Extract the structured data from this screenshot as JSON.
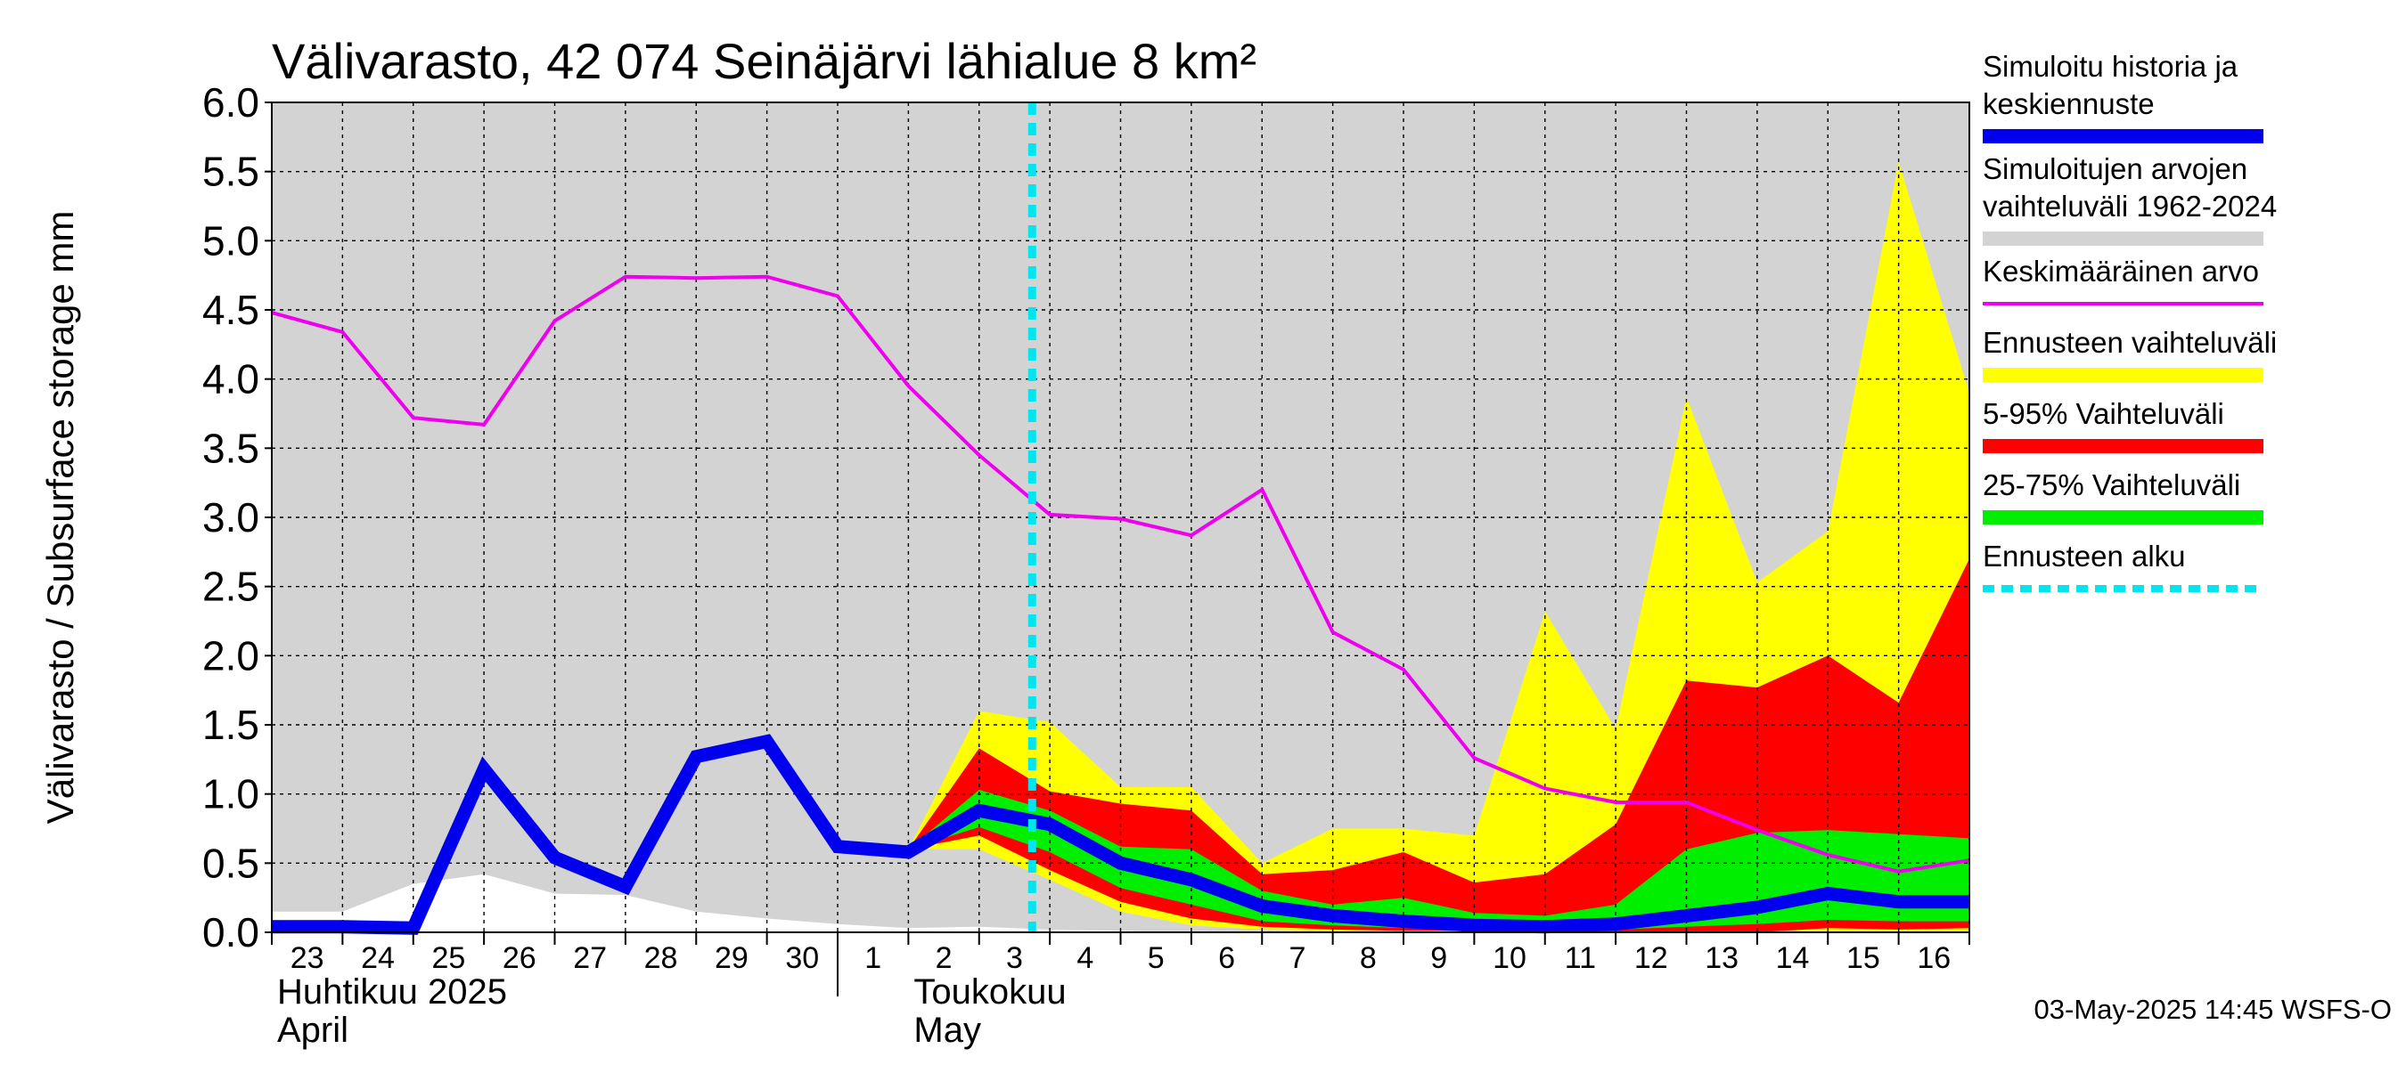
{
  "chart_data": {
    "type": "area",
    "title": "Välivarasto, 42 074 Seinäjärvi lähialue 8 km²",
    "ylabel": "Välivarasto / Subsurface storage  mm",
    "ylim": [
      0,
      6
    ],
    "yticks": [
      "0.0",
      "0.5",
      "1.0",
      "1.5",
      "2.0",
      "2.5",
      "3.0",
      "3.5",
      "4.0",
      "4.5",
      "5.0",
      "5.5",
      "6.0"
    ],
    "grid": true,
    "x_start_day": 23,
    "x_end_day": 47,
    "day_labels": [
      {
        "day": 23,
        "label": "23"
      },
      {
        "day": 24,
        "label": "24"
      },
      {
        "day": 25,
        "label": "25"
      },
      {
        "day": 26,
        "label": "26"
      },
      {
        "day": 27,
        "label": "27"
      },
      {
        "day": 28,
        "label": "28"
      },
      {
        "day": 29,
        "label": "29"
      },
      {
        "day": 30,
        "label": "30"
      },
      {
        "day": 31,
        "label": "1"
      },
      {
        "day": 32,
        "label": "2"
      },
      {
        "day": 33,
        "label": "3"
      },
      {
        "day": 34,
        "label": "4"
      },
      {
        "day": 35,
        "label": "5"
      },
      {
        "day": 36,
        "label": "6"
      },
      {
        "day": 37,
        "label": "7"
      },
      {
        "day": 38,
        "label": "8"
      },
      {
        "day": 39,
        "label": "9"
      },
      {
        "day": 40,
        "label": "10"
      },
      {
        "day": 41,
        "label": "11"
      },
      {
        "day": 42,
        "label": "12"
      },
      {
        "day": 43,
        "label": "13"
      },
      {
        "day": 44,
        "label": "14"
      },
      {
        "day": 45,
        "label": "15"
      },
      {
        "day": 46,
        "label": "16"
      }
    ],
    "month_labels": [
      {
        "day": 23,
        "line1": "Huhtikuu  2025",
        "line2": "April"
      },
      {
        "day": 32,
        "line1": "Toukokuu",
        "line2": "May"
      }
    ],
    "month_separator_day": 31,
    "forecast_start_day": 33.75,
    "series": [
      {
        "name": "Simuloitujen arvojen vaihteluväli 1962-2024",
        "role": "band",
        "color": "#d3d3d3",
        "x": [
          23,
          24,
          25,
          26,
          27,
          28,
          29,
          30,
          31,
          32,
          33,
          34,
          35,
          36,
          37,
          38,
          39,
          40,
          41,
          42,
          43,
          44,
          45,
          46,
          47
        ],
        "upper": [
          6,
          6,
          6,
          6,
          6,
          6,
          6,
          6,
          6,
          6,
          6,
          6,
          6,
          6,
          6,
          6,
          6,
          6,
          6,
          6,
          6,
          6,
          6,
          6,
          6
        ],
        "lower": [
          0.15,
          0.15,
          0.35,
          0.42,
          0.28,
          0.27,
          0.15,
          0.1,
          0.06,
          0.03,
          0.04,
          0.02,
          0.01,
          0,
          0,
          0,
          0,
          0,
          0,
          0,
          0,
          0,
          0,
          0,
          0
        ]
      },
      {
        "name": "Ennusteen vaihteluväli",
        "role": "band",
        "color": "#ffff00",
        "x": [
          32,
          33,
          34,
          35,
          36,
          37,
          38,
          39,
          40,
          41,
          42,
          43,
          44,
          45,
          46,
          47
        ],
        "upper": [
          0.6,
          1.6,
          1.52,
          1.05,
          1.05,
          0.5,
          0.75,
          0.75,
          0.7,
          2.32,
          1.47,
          3.87,
          2.53,
          2.9,
          5.57,
          3.9
        ],
        "lower": [
          0.6,
          0.6,
          0.38,
          0.15,
          0.05,
          0.02,
          0.01,
          0,
          0,
          0,
          0,
          0,
          0,
          0,
          0,
          0
        ]
      },
      {
        "name": "5-95% Vaihteluväli",
        "role": "band",
        "color": "#ff0000",
        "x": [
          32,
          33,
          34,
          35,
          36,
          37,
          38,
          39,
          40,
          41,
          42,
          43,
          44,
          45,
          46,
          47
        ],
        "upper": [
          0.6,
          1.33,
          1.02,
          0.93,
          0.88,
          0.42,
          0.45,
          0.58,
          0.36,
          0.42,
          0.78,
          1.82,
          1.77,
          2.0,
          1.66,
          2.7
        ],
        "lower": [
          0.6,
          0.7,
          0.45,
          0.22,
          0.1,
          0.04,
          0.02,
          0.01,
          0.01,
          0,
          0,
          0,
          0,
          0.03,
          0.02,
          0.03
        ]
      },
      {
        "name": "25-75% Vaihteluväli",
        "role": "band",
        "color": "#00ee00",
        "x": [
          32,
          33,
          34,
          35,
          36,
          37,
          38,
          39,
          40,
          41,
          42,
          43,
          44,
          45,
          46,
          47
        ],
        "upper": [
          0.6,
          1.03,
          0.88,
          0.62,
          0.6,
          0.3,
          0.2,
          0.25,
          0.14,
          0.12,
          0.2,
          0.6,
          0.72,
          0.74,
          0.71,
          0.68
        ],
        "lower": [
          0.6,
          0.76,
          0.58,
          0.32,
          0.2,
          0.08,
          0.05,
          0.03,
          0.02,
          0.01,
          0.02,
          0.04,
          0.06,
          0.09,
          0.08,
          0.08
        ]
      },
      {
        "name": "Keskimääräinen arvo",
        "role": "line",
        "color": "#ee00ee",
        "x": [
          23,
          24,
          25,
          26,
          27,
          28,
          29,
          30,
          31,
          32,
          33,
          34,
          35,
          36,
          37,
          38,
          39,
          40,
          41,
          42,
          43,
          44,
          45,
          46,
          47
        ],
        "values": [
          4.48,
          4.34,
          3.72,
          3.67,
          4.42,
          4.74,
          4.73,
          4.74,
          4.6,
          3.95,
          3.45,
          3.02,
          2.99,
          2.87,
          3.2,
          2.17,
          1.9,
          1.26,
          1.04,
          0.94,
          0.94,
          0.74,
          0.56,
          0.44,
          0.52
        ]
      },
      {
        "name": "Simuloitu historia ja keskiennuste",
        "role": "line",
        "color": "#0000ee",
        "x": [
          23,
          24,
          25,
          26,
          27,
          28,
          29,
          30,
          31,
          32,
          33,
          34,
          35,
          36,
          37,
          38,
          39,
          40,
          41,
          42,
          43,
          44,
          45,
          46,
          47
        ],
        "values": [
          0.04,
          0.04,
          0.03,
          1.18,
          0.54,
          0.33,
          1.27,
          1.38,
          0.62,
          0.58,
          0.88,
          0.78,
          0.5,
          0.38,
          0.19,
          0.12,
          0.08,
          0.05,
          0.04,
          0.06,
          0.12,
          0.18,
          0.28,
          0.22,
          0.22
        ]
      }
    ],
    "legend_position": "right",
    "legend": [
      {
        "lines": [
          "Simuloitu historia ja",
          "keskiennuste"
        ],
        "color": "#0000ee",
        "style": "thick"
      },
      {
        "lines": [
          "Simuloitujen arvojen",
          "vaihteluväli 1962-2024"
        ],
        "color": "#d3d3d3",
        "style": "band"
      },
      {
        "lines": [
          "Keskimääräinen arvo"
        ],
        "color": "#ee00ee",
        "style": "thin"
      },
      {
        "lines": [
          "Ennusteen vaihteluväli"
        ],
        "color": "#ffff00",
        "style": "band"
      },
      {
        "lines": [
          "5-95% Vaihteluväli"
        ],
        "color": "#ff0000",
        "style": "band"
      },
      {
        "lines": [
          "25-75% Vaihteluväli"
        ],
        "color": "#00ee00",
        "style": "band"
      },
      {
        "lines": [
          "Ennusteen alku"
        ],
        "color": "#00e5ee",
        "style": "dashed"
      }
    ],
    "footer": "03-May-2025 14:45 WSFS-O"
  }
}
